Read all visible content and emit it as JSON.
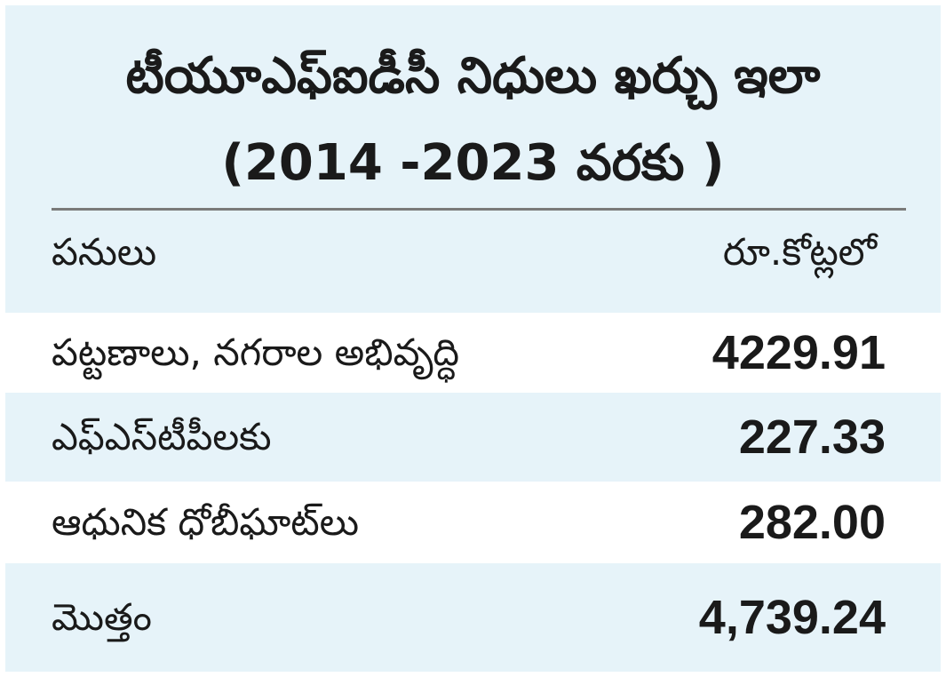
{
  "title": {
    "line1": "టీయూఎఫ్ఐడీసీ నిధులు ఖర్చు ఇలా",
    "line2": "(2014 -2023 వరకు )"
  },
  "columns": {
    "work": "పనులు",
    "amount": "రూ.కోట్లలో"
  },
  "rows": [
    {
      "label": "పట్టణాలు, నగరాల అభివృద్ధి",
      "value": "4229.91"
    },
    {
      "label": "ఎఫ్ఎస్‌టీపీలకు",
      "value": "227.33"
    },
    {
      "label": "ఆధునిక ధోబీఘాట్‌లు",
      "value": "282.00"
    }
  ],
  "total": {
    "label": "మొత్తం",
    "value": "4,739.24"
  }
}
